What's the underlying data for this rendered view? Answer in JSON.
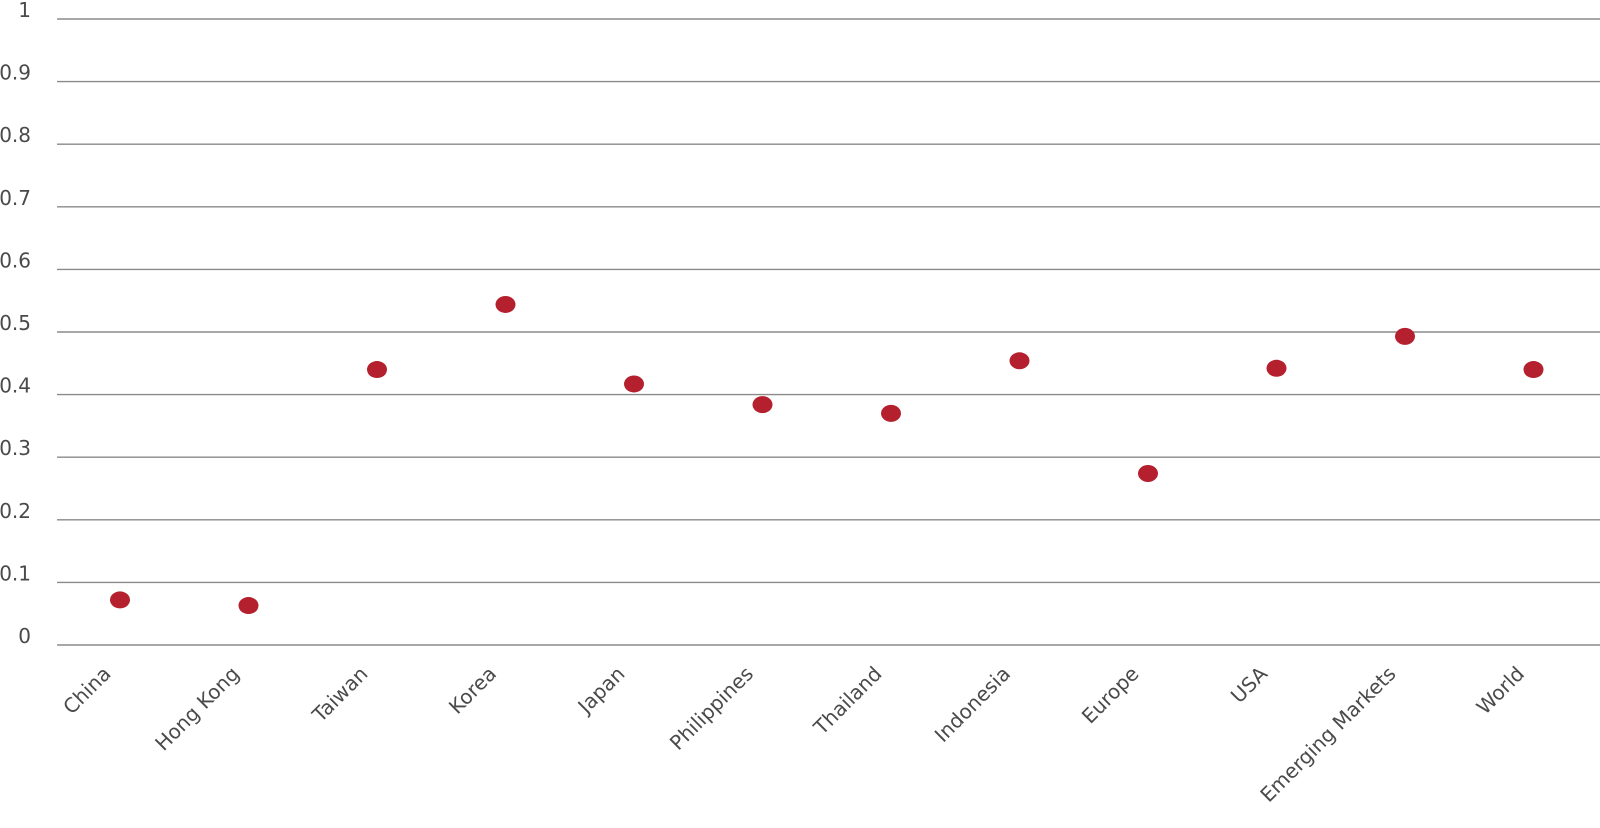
{
  "chart_data": {
    "type": "scatter",
    "title": "",
    "xlabel": "",
    "ylabel": "",
    "ylim": [
      0,
      1
    ],
    "yticks": [
      0,
      0.1,
      0.2,
      0.3,
      0.4,
      0.5,
      0.6,
      0.7,
      0.8,
      0.9,
      1
    ],
    "ytick_labels": [
      "0",
      "0.1",
      "0.2",
      "0.3",
      "0.4",
      "0.5",
      "0.6",
      "0.7",
      "0.8",
      "0.9",
      "1"
    ],
    "grid": true,
    "legend": "none",
    "categories": [
      "China",
      "Hong Kong",
      "Taiwan",
      "Korea",
      "Japan",
      "Philippines",
      "Thailand",
      "Indonesia",
      "Europe",
      "USA",
      "Emerging Markets",
      "World"
    ],
    "series": [
      {
        "values": [
          0.072,
          0.063,
          0.44,
          0.544,
          0.417,
          0.384,
          0.37,
          0.454,
          0.274,
          0.442,
          0.493,
          0.44
        ],
        "color": "#b5202e"
      }
    ]
  }
}
